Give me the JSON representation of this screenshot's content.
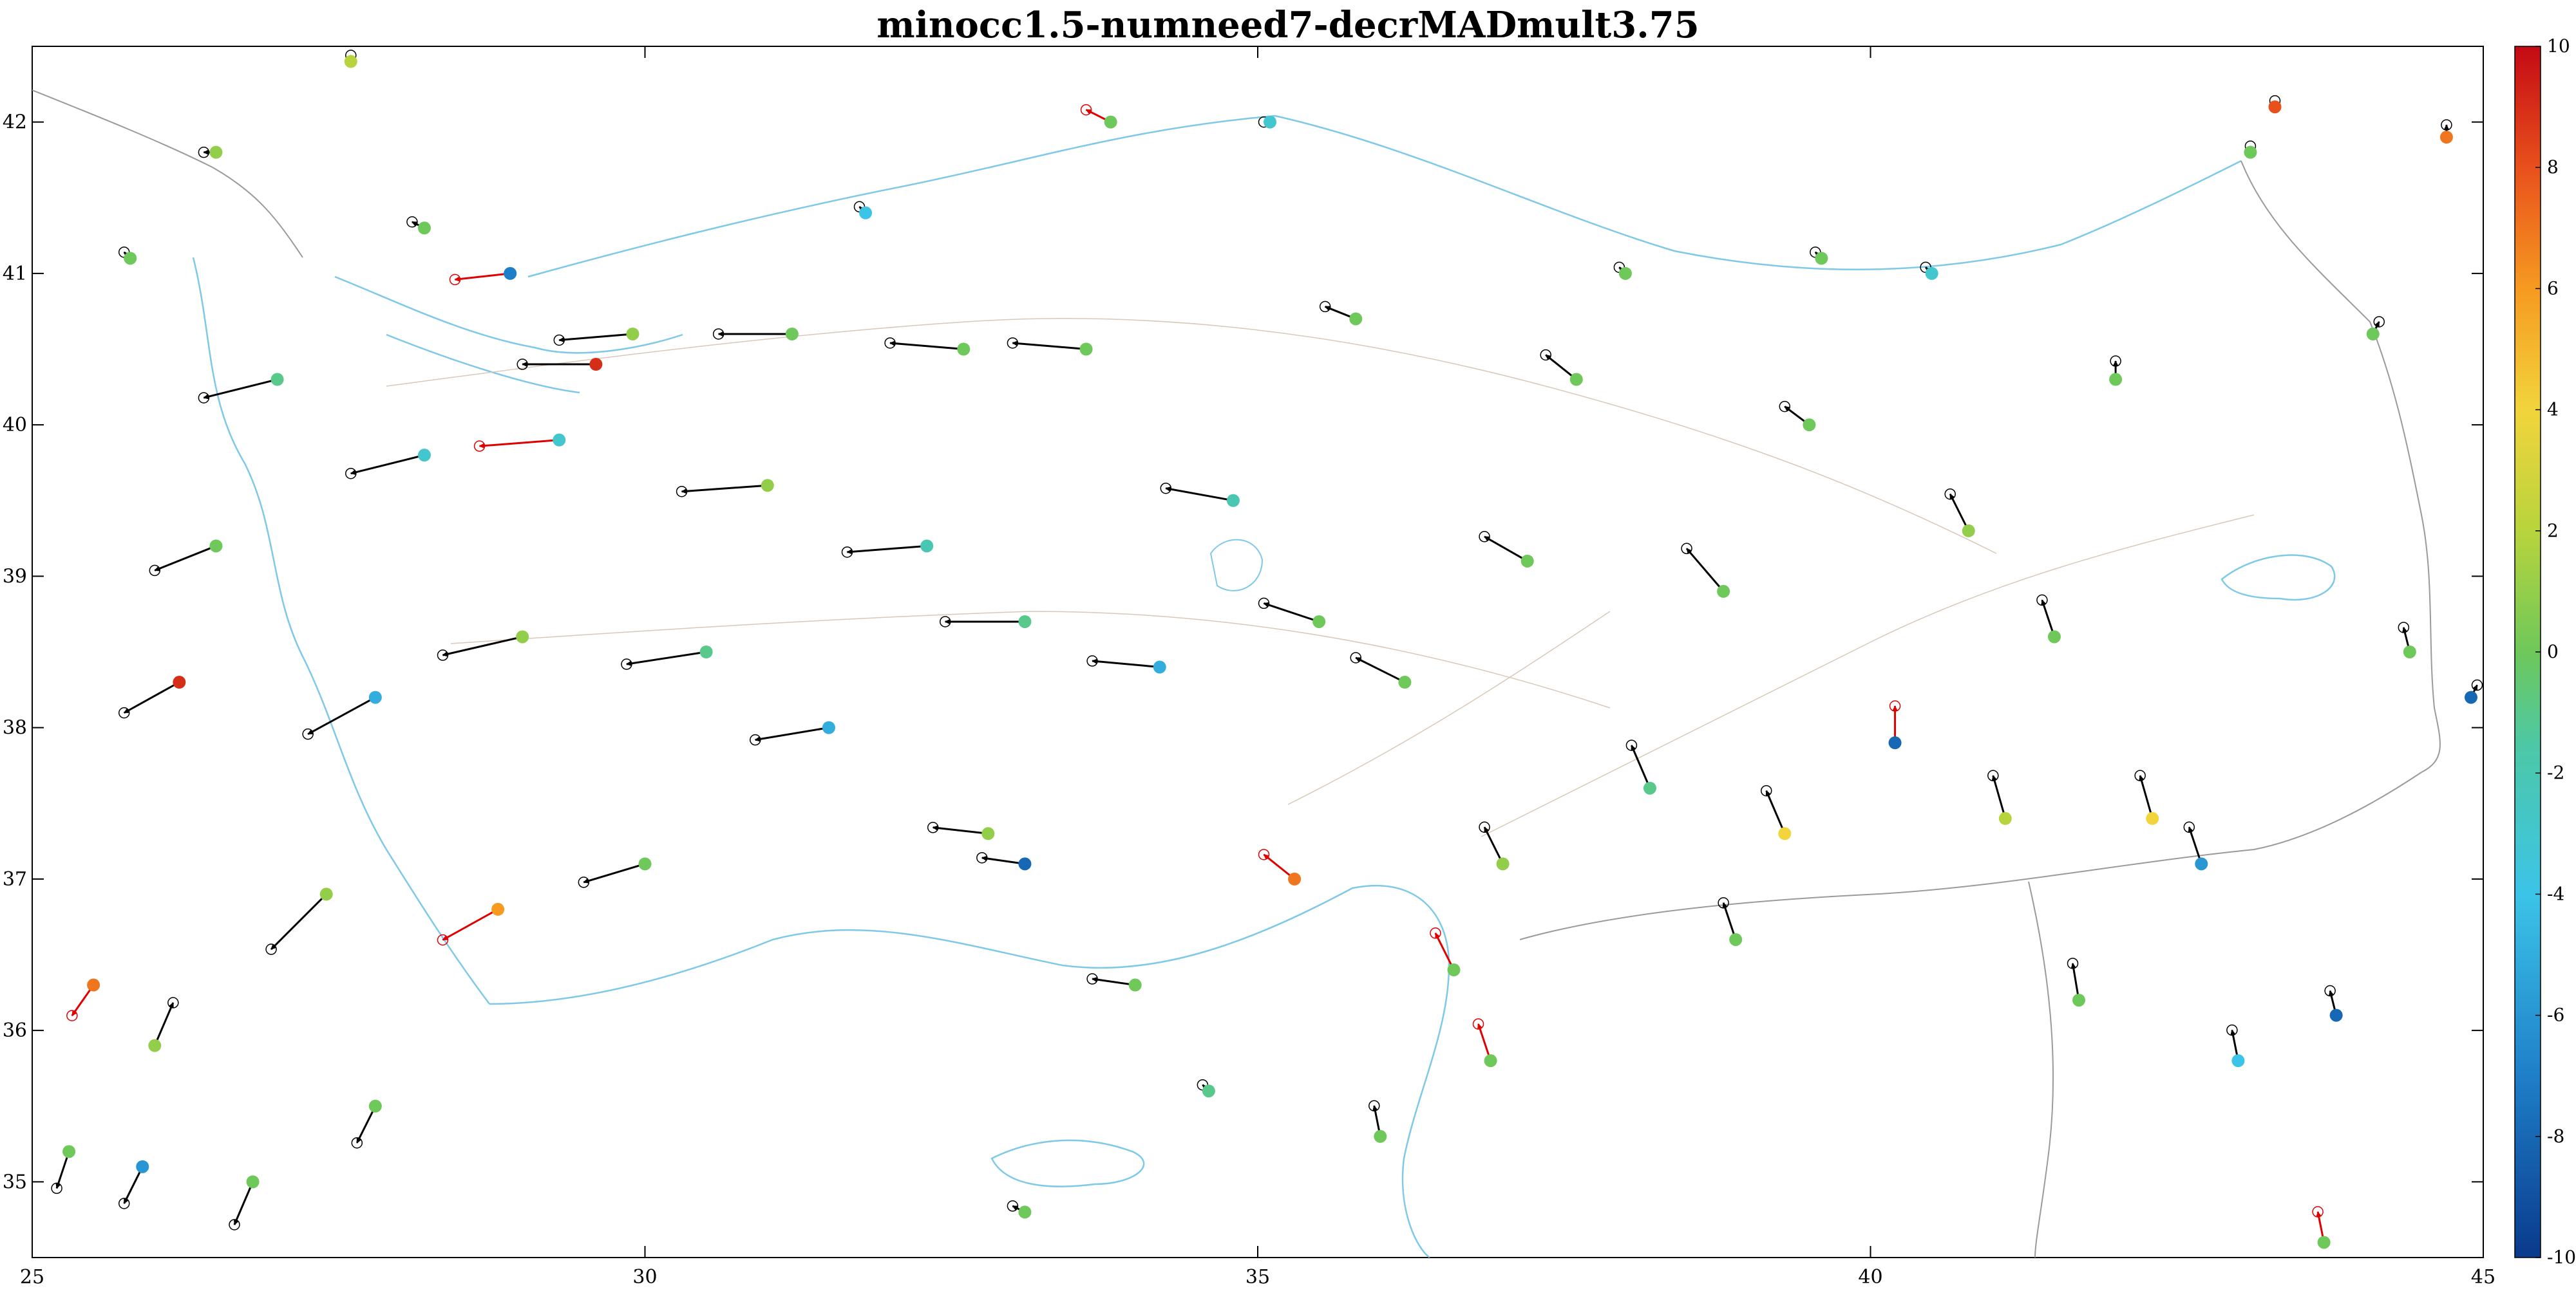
{
  "title": "minocc1.5-numneed7-decrMADmult3.75",
  "chart_data": {
    "type": "scatter",
    "xlim": [
      25,
      45
    ],
    "ylim": [
      34.5,
      42.5
    ],
    "x_ticks": [
      25,
      30,
      35,
      40,
      45
    ],
    "y_ticks": [
      35,
      36,
      37,
      38,
      39,
      40,
      41,
      42
    ],
    "colorbar": {
      "min": -10,
      "max": 10,
      "ticks": [
        -10,
        -8,
        -6,
        -4,
        -2,
        0,
        2,
        4,
        6,
        8,
        10
      ]
    },
    "colors": {
      "ok_arrow": "#000000",
      "flagged_arrow": "#e00000",
      "coast": "#7ec8e8",
      "border": "#9a9a9a",
      "fault": "#d8c8b8"
    },
    "stations": [
      {
        "x": 25.5,
        "y": 36.3,
        "v": 7,
        "dx": -0.35,
        "dy": -0.5,
        "flag": true
      },
      {
        "x": 26.0,
        "y": 35.9,
        "v": 1,
        "dx": 0.3,
        "dy": 0.7,
        "flag": false
      },
      {
        "x": 26.2,
        "y": 38.3,
        "v": 9,
        "dx": -0.9,
        "dy": -0.5,
        "flag": false
      },
      {
        "x": 26.5,
        "y": 39.2,
        "v": 0,
        "dx": -1.0,
        "dy": -0.4,
        "flag": false
      },
      {
        "x": 27.0,
        "y": 40.3,
        "v": -1,
        "dx": -1.2,
        "dy": -0.3,
        "flag": false
      },
      {
        "x": 27.4,
        "y": 36.9,
        "v": 1,
        "dx": -0.9,
        "dy": -0.9,
        "flag": false
      },
      {
        "x": 27.8,
        "y": 35.5,
        "v": 0,
        "dx": -0.3,
        "dy": -0.6,
        "flag": false
      },
      {
        "x": 27.8,
        "y": 38.2,
        "v": -5,
        "dx": -1.1,
        "dy": -0.6,
        "flag": false
      },
      {
        "x": 28.2,
        "y": 39.8,
        "v": -3,
        "dx": -1.2,
        "dy": -0.3,
        "flag": false
      },
      {
        "x": 28.8,
        "y": 36.8,
        "v": 6,
        "dx": -0.9,
        "dy": -0.5,
        "flag": true
      },
      {
        "x": 29.0,
        "y": 38.6,
        "v": 1,
        "dx": -1.3,
        "dy": -0.3,
        "flag": false
      },
      {
        "x": 29.3,
        "y": 39.9,
        "v": -3,
        "dx": -1.3,
        "dy": -0.1,
        "flag": true
      },
      {
        "x": 29.6,
        "y": 40.4,
        "v": 9,
        "dx": -1.2,
        "dy": 0.0,
        "flag": false
      },
      {
        "x": 30.0,
        "y": 37.1,
        "v": 0,
        "dx": -1.0,
        "dy": -0.3,
        "flag": false
      },
      {
        "x": 30.5,
        "y": 38.5,
        "v": -1,
        "dx": -1.3,
        "dy": -0.2,
        "flag": false
      },
      {
        "x": 31.0,
        "y": 39.6,
        "v": 1,
        "dx": -1.4,
        "dy": -0.1,
        "flag": false
      },
      {
        "x": 31.2,
        "y": 40.6,
        "v": 0,
        "dx": -1.2,
        "dy": 0.0,
        "flag": false
      },
      {
        "x": 31.5,
        "y": 38.0,
        "v": -5,
        "dx": -1.2,
        "dy": -0.2,
        "flag": false
      },
      {
        "x": 31.8,
        "y": 41.4,
        "v": -4,
        "dx": -0.1,
        "dy": 0.1,
        "flag": false
      },
      {
        "x": 32.3,
        "y": 39.2,
        "v": -2,
        "dx": -1.3,
        "dy": -0.1,
        "flag": false
      },
      {
        "x": 32.6,
        "y": 40.5,
        "v": 0,
        "dx": -1.2,
        "dy": 0.1,
        "flag": false
      },
      {
        "x": 32.8,
        "y": 37.3,
        "v": 1,
        "dx": -0.9,
        "dy": 0.1,
        "flag": false
      },
      {
        "x": 33.1,
        "y": 38.7,
        "v": -1,
        "dx": -1.3,
        "dy": 0.0,
        "flag": false
      },
      {
        "x": 33.1,
        "y": 37.1,
        "v": -8,
        "dx": -0.7,
        "dy": 0.1,
        "flag": false
      },
      {
        "x": 33.1,
        "y": 34.8,
        "v": 0,
        "dx": -0.2,
        "dy": 0.1,
        "flag": false
      },
      {
        "x": 33.6,
        "y": 40.5,
        "v": 0,
        "dx": -1.2,
        "dy": 0.1,
        "flag": false
      },
      {
        "x": 33.8,
        "y": 42.0,
        "v": 0,
        "dx": -0.4,
        "dy": 0.2,
        "flag": true
      },
      {
        "x": 34.0,
        "y": 36.3,
        "v": 0,
        "dx": -0.7,
        "dy": 0.1,
        "flag": false
      },
      {
        "x": 34.2,
        "y": 38.4,
        "v": -5,
        "dx": -1.1,
        "dy": 0.1,
        "flag": false
      },
      {
        "x": 34.6,
        "y": 35.6,
        "v": -1,
        "dx": -0.1,
        "dy": 0.1,
        "flag": false
      },
      {
        "x": 34.8,
        "y": 39.5,
        "v": -2,
        "dx": -1.1,
        "dy": 0.2,
        "flag": false
      },
      {
        "x": 35.1,
        "y": 42.0,
        "v": -3,
        "dx": -0.1,
        "dy": 0.0,
        "flag": false
      },
      {
        "x": 35.3,
        "y": 37.0,
        "v": 7,
        "dx": -0.5,
        "dy": 0.4,
        "flag": true
      },
      {
        "x": 35.5,
        "y": 38.7,
        "v": 0,
        "dx": -0.9,
        "dy": 0.3,
        "flag": false
      },
      {
        "x": 35.8,
        "y": 40.7,
        "v": 0,
        "dx": -0.5,
        "dy": 0.2,
        "flag": false
      },
      {
        "x": 36.2,
        "y": 38.3,
        "v": 0,
        "dx": -0.8,
        "dy": 0.4,
        "flag": false
      },
      {
        "x": 36.6,
        "y": 36.4,
        "v": 0,
        "dx": -0.3,
        "dy": 0.6,
        "flag": true
      },
      {
        "x": 37.0,
        "y": 37.1,
        "v": 1,
        "dx": -0.3,
        "dy": 0.6,
        "flag": false
      },
      {
        "x": 37.2,
        "y": 39.1,
        "v": 0,
        "dx": -0.7,
        "dy": 0.4,
        "flag": false
      },
      {
        "x": 37.6,
        "y": 40.3,
        "v": 0,
        "dx": -0.5,
        "dy": 0.4,
        "flag": false
      },
      {
        "x": 38.0,
        "y": 41.0,
        "v": 0,
        "dx": -0.1,
        "dy": 0.1,
        "flag": false
      },
      {
        "x": 38.2,
        "y": 37.6,
        "v": -1,
        "dx": -0.3,
        "dy": 0.7,
        "flag": false
      },
      {
        "x": 38.8,
        "y": 38.9,
        "v": 0,
        "dx": -0.6,
        "dy": 0.7,
        "flag": false
      },
      {
        "x": 39.3,
        "y": 37.3,
        "v": 4,
        "dx": -0.3,
        "dy": 0.7,
        "flag": false
      },
      {
        "x": 39.5,
        "y": 40.0,
        "v": 0,
        "dx": -0.4,
        "dy": 0.3,
        "flag": false
      },
      {
        "x": 39.6,
        "y": 41.1,
        "v": 0,
        "dx": -0.1,
        "dy": 0.1,
        "flag": false
      },
      {
        "x": 40.2,
        "y": 37.9,
        "v": -8,
        "dx": 0.0,
        "dy": 0.6,
        "flag": true
      },
      {
        "x": 40.5,
        "y": 41.0,
        "v": -3,
        "dx": -0.1,
        "dy": 0.1,
        "flag": false
      },
      {
        "x": 40.8,
        "y": 39.3,
        "v": 1,
        "dx": -0.3,
        "dy": 0.6,
        "flag": false
      },
      {
        "x": 41.1,
        "y": 37.4,
        "v": 2,
        "dx": -0.2,
        "dy": 0.7,
        "flag": false
      },
      {
        "x": 41.5,
        "y": 38.6,
        "v": 0,
        "dx": -0.2,
        "dy": 0.6,
        "flag": false
      },
      {
        "x": 42.0,
        "y": 40.3,
        "v": 0,
        "dx": 0.0,
        "dy": 0.3,
        "flag": false
      },
      {
        "x": 42.3,
        "y": 37.4,
        "v": 4,
        "dx": -0.2,
        "dy": 0.7,
        "flag": false
      },
      {
        "x": 42.7,
        "y": 37.1,
        "v": -6,
        "dx": -0.2,
        "dy": 0.6,
        "flag": false
      },
      {
        "x": 43.0,
        "y": 35.8,
        "v": -4,
        "dx": -0.1,
        "dy": 0.5,
        "flag": false
      },
      {
        "x": 43.1,
        "y": 41.8,
        "v": 0,
        "dx": 0.0,
        "dy": 0.1,
        "flag": false
      },
      {
        "x": 43.3,
        "y": 42.1,
        "v": 8,
        "dx": 0.0,
        "dy": 0.1,
        "flag": false
      },
      {
        "x": 43.8,
        "y": 36.1,
        "v": -8,
        "dx": -0.1,
        "dy": 0.4,
        "flag": false
      },
      {
        "x": 43.7,
        "y": 34.6,
        "v": 0,
        "dx": -0.1,
        "dy": 0.5,
        "flag": true
      },
      {
        "x": 44.1,
        "y": 40.6,
        "v": 0,
        "dx": 0.1,
        "dy": 0.2,
        "flag": false
      },
      {
        "x": 44.4,
        "y": 38.5,
        "v": 0,
        "dx": -0.1,
        "dy": 0.4,
        "flag": false
      },
      {
        "x": 44.7,
        "y": 41.9,
        "v": 7,
        "dx": 0.0,
        "dy": 0.2,
        "flag": false
      },
      {
        "x": 44.9,
        "y": 38.2,
        "v": -8,
        "dx": 0.1,
        "dy": 0.2,
        "flag": false
      },
      {
        "x": 25.8,
        "y": 41.1,
        "v": 0,
        "dx": -0.1,
        "dy": 0.1,
        "flag": false
      },
      {
        "x": 26.5,
        "y": 41.8,
        "v": 1,
        "dx": -0.2,
        "dy": 0.0,
        "flag": false
      },
      {
        "x": 27.6,
        "y": 42.4,
        "v": 2,
        "dx": 0.0,
        "dy": 0.1,
        "flag": false
      },
      {
        "x": 28.2,
        "y": 41.3,
        "v": 0,
        "dx": -0.2,
        "dy": 0.1,
        "flag": false
      },
      {
        "x": 28.9,
        "y": 41.0,
        "v": -7,
        "dx": -0.9,
        "dy": -0.1,
        "flag": true
      },
      {
        "x": 29.9,
        "y": 40.6,
        "v": 1,
        "dx": -1.2,
        "dy": -0.1,
        "flag": false
      },
      {
        "x": 25.3,
        "y": 35.2,
        "v": 0,
        "dx": -0.2,
        "dy": -0.6,
        "flag": false
      },
      {
        "x": 25.9,
        "y": 35.1,
        "v": -6,
        "dx": -0.3,
        "dy": -0.6,
        "flag": false
      },
      {
        "x": 26.8,
        "y": 35.0,
        "v": 0,
        "dx": -0.3,
        "dy": -0.7,
        "flag": false
      },
      {
        "x": 36.0,
        "y": 35.3,
        "v": 0,
        "dx": -0.1,
        "dy": 0.5,
        "flag": false
      },
      {
        "x": 36.9,
        "y": 35.8,
        "v": 0,
        "dx": -0.2,
        "dy": 0.6,
        "flag": true
      },
      {
        "x": 38.9,
        "y": 36.6,
        "v": 0,
        "dx": -0.2,
        "dy": 0.6,
        "flag": false
      },
      {
        "x": 41.7,
        "y": 36.2,
        "v": 0,
        "dx": -0.1,
        "dy": 0.6,
        "flag": false
      }
    ]
  }
}
